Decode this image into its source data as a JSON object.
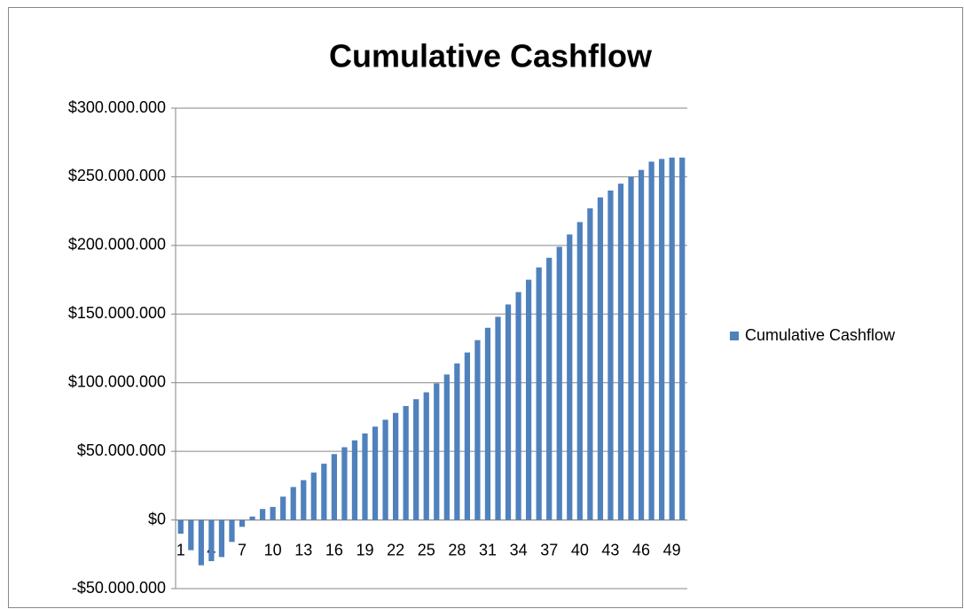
{
  "chart_data": {
    "type": "bar",
    "title": "Cumulative Cashflow",
    "categories": [
      1,
      null,
      null,
      4,
      null,
      null,
      7,
      null,
      null,
      10,
      null,
      null,
      13,
      null,
      null,
      16,
      null,
      null,
      19,
      null,
      null,
      22,
      null,
      null,
      25,
      null,
      null,
      28,
      null,
      null,
      31,
      null,
      null,
      34,
      null,
      null,
      37,
      null,
      null,
      40,
      null,
      null,
      43,
      null,
      null,
      46,
      null,
      null,
      49,
      null
    ],
    "series": [
      {
        "name": "Cumulative Cashflow",
        "color": "#4f81bd",
        "values": [
          -10000000,
          -22000000,
          -33000000,
          -30000000,
          -27000000,
          -16000000,
          -5000000,
          2500000,
          8000000,
          9500000,
          17000000,
          24000000,
          29000000,
          34500000,
          41000000,
          48000000,
          53000000,
          58000000,
          63000000,
          68000000,
          73000000,
          78000000,
          83000000,
          88000000,
          93000000,
          99500000,
          106000000,
          114000000,
          122000000,
          131000000,
          140000000,
          148000000,
          157000000,
          166000000,
          175000000,
          184000000,
          191000000,
          199000000,
          208000000,
          217000000,
          227000000,
          235000000,
          240000000,
          245000000,
          250000000,
          255000000,
          261000000,
          263000000,
          264000000,
          264000000
        ]
      }
    ],
    "ylim": [
      -50000000,
      300000000
    ],
    "yticks": [
      {
        "value": -50000000,
        "label": "-$50.000.000"
      },
      {
        "value": 0,
        "label": "$0"
      },
      {
        "value": 50000000,
        "label": "$50.000.000"
      },
      {
        "value": 100000000,
        "label": "$100.000.000"
      },
      {
        "value": 150000000,
        "label": "$150.000.000"
      },
      {
        "value": 200000000,
        "label": "$200.000.000"
      },
      {
        "value": 250000000,
        "label": "$250.000.000"
      },
      {
        "value": 300000000,
        "label": "$300.000.000"
      }
    ],
    "grid": true,
    "legend": "right"
  }
}
